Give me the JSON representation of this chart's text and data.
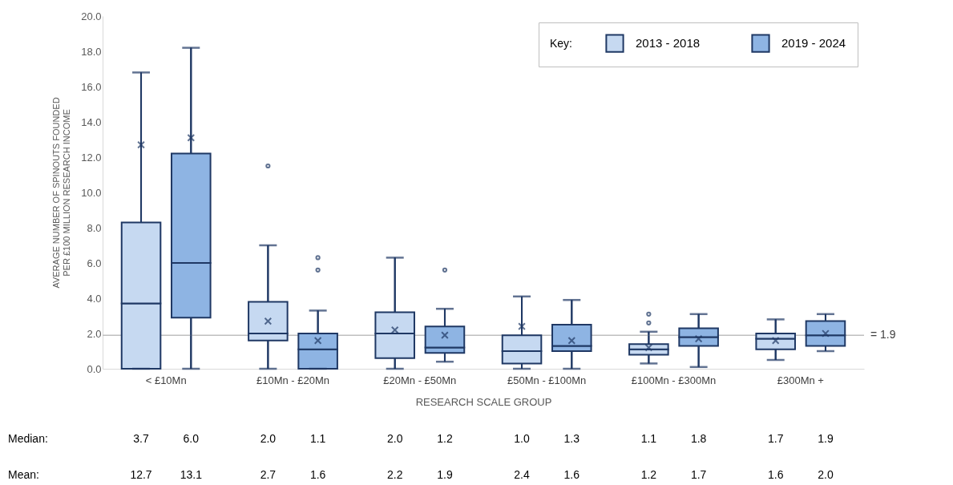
{
  "chart_data": {
    "type": "box",
    "ylabel": "AVERAGE NUMBER OF SPINOUTS FOUNDED PER £100 MILLION RESEARCH INCOME",
    "xlabel": "RESEARCH SCALE GROUP",
    "legend_title": "Key:",
    "categories": [
      "< £10Mn",
      "£10Mn - £20Mn",
      "£20Mn - £50Mn",
      "£50Mn - £100Mn",
      "£100Mn - £300Mn",
      "£300Mn +"
    ],
    "series": [
      {
        "name": "2013 - 2018",
        "color": "#c6d9f1",
        "boxes": [
          {
            "low": 0,
            "q1": 0,
            "median": 3.7,
            "q3": 8.3,
            "high": 16.8,
            "mean": 12.7
          },
          {
            "low": 0,
            "q1": 1.6,
            "median": 2.0,
            "q3": 3.8,
            "high": 7.0,
            "mean": 2.7,
            "outliers": [
              11.5
            ]
          },
          {
            "low": 0,
            "q1": 0.6,
            "median": 2.0,
            "q3": 3.2,
            "high": 6.3,
            "mean": 2.2
          },
          {
            "low": 0,
            "q1": 0.3,
            "median": 1.0,
            "q3": 1.9,
            "high": 4.1,
            "mean": 2.4
          },
          {
            "low": 0.3,
            "q1": 0.8,
            "median": 1.1,
            "q3": 1.4,
            "high": 2.1,
            "mean": 1.2,
            "outliers": [
              3.1,
              2.6
            ]
          },
          {
            "low": 0.5,
            "q1": 1.1,
            "median": 1.7,
            "q3": 2.0,
            "high": 2.8,
            "mean": 1.6
          }
        ]
      },
      {
        "name": "2019 - 2024",
        "color": "#8eb4e3",
        "boxes": [
          {
            "low": 0,
            "q1": 2.9,
            "median": 6.0,
            "q3": 12.2,
            "high": 18.2,
            "mean": 13.1
          },
          {
            "low": 0,
            "q1": 0,
            "median": 1.1,
            "q3": 2.0,
            "high": 3.3,
            "mean": 1.6,
            "outliers": [
              6.3,
              5.6
            ]
          },
          {
            "low": 0.4,
            "q1": 0.9,
            "median": 1.2,
            "q3": 2.4,
            "high": 3.4,
            "mean": 1.9,
            "outliers": [
              5.6
            ]
          },
          {
            "low": 0,
            "q1": 1.0,
            "median": 1.3,
            "q3": 2.5,
            "high": 3.9,
            "mean": 1.6
          },
          {
            "low": 0.1,
            "q1": 1.3,
            "median": 1.8,
            "q3": 2.3,
            "high": 3.1,
            "mean": 1.7
          },
          {
            "low": 1.0,
            "q1": 1.3,
            "median": 1.9,
            "q3": 2.7,
            "high": 3.1,
            "mean": 2.0
          }
        ]
      }
    ],
    "ylim": [
      0,
      20
    ],
    "yticks": [
      {
        "value": 0,
        "label": "0.0"
      },
      {
        "value": 2,
        "label": "2.0"
      },
      {
        "value": 4,
        "label": "4.0"
      },
      {
        "value": 6,
        "label": "6.0"
      },
      {
        "value": 8,
        "label": "8.0"
      },
      {
        "value": 10,
        "label": "10.0"
      },
      {
        "value": 12,
        "label": "12.0"
      },
      {
        "value": 14,
        "label": "14.0"
      },
      {
        "value": 16,
        "label": "16.0"
      },
      {
        "value": 18,
        "label": "18.0"
      },
      {
        "value": 20,
        "label": "20.0"
      }
    ],
    "ref_lines": [
      {
        "axis": "y",
        "value": 1.9,
        "label": "= 1.9",
        "color": "#bfbfbf"
      }
    ],
    "legend": "top right",
    "grid": false,
    "marker": "circle",
    "annotations": [
      "Median:",
      "Mean:",
      "3.7",
      "6.0",
      "2.0",
      "1.1",
      "2.0",
      "1.2",
      "1.0",
      "1.3",
      "1.1",
      "1.8",
      "1.7",
      "1.9",
      "12.7",
      "13.1",
      "2.7",
      "1.6",
      "2.2",
      "1.9",
      "2.4",
      "1.6",
      "1.2",
      "1.7",
      "1.6",
      "2.0"
    ]
  }
}
